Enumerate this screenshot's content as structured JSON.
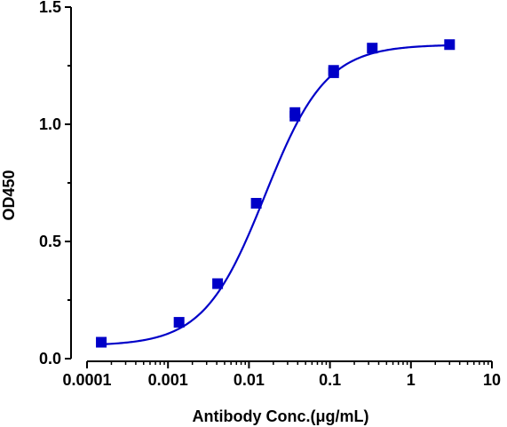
{
  "chart_data": {
    "type": "scatter",
    "title": "",
    "xlabel": "Antibody Conc.(μg/mL)",
    "ylabel": "OD450",
    "xscale": "log",
    "xlim": [
      0.0001,
      10
    ],
    "ylim": [
      0,
      1.5
    ],
    "x_ticks": [
      0.0001,
      0.001,
      0.01,
      0.1,
      1,
      10
    ],
    "x_tick_labels": [
      "0.0001",
      "0.001",
      "0.01",
      "0.1",
      "1",
      "10"
    ],
    "y_ticks": [
      0,
      0.5,
      1.0,
      1.5
    ],
    "y_tick_labels": [
      "0.0",
      "0.5",
      "1.0",
      "1.5"
    ],
    "grid": false,
    "legend": "none",
    "color": "#0000c8",
    "marker": "square",
    "fit": "four-parameter logistic curve",
    "points": [
      {
        "x": 0.00015,
        "y": 0.07
      },
      {
        "x": 0.00137,
        "y": 0.155
      },
      {
        "x": 0.0041,
        "y": 0.32
      },
      {
        "x": 0.0123,
        "y": 0.663
      },
      {
        "x": 0.037,
        "y": 1.035
      },
      {
        "x": 0.037,
        "y": 1.05
      },
      {
        "x": 0.111,
        "y": 1.22
      },
      {
        "x": 0.111,
        "y": 1.23
      },
      {
        "x": 0.333,
        "y": 1.325
      },
      {
        "x": 3.0,
        "y": 1.34
      }
    ]
  }
}
